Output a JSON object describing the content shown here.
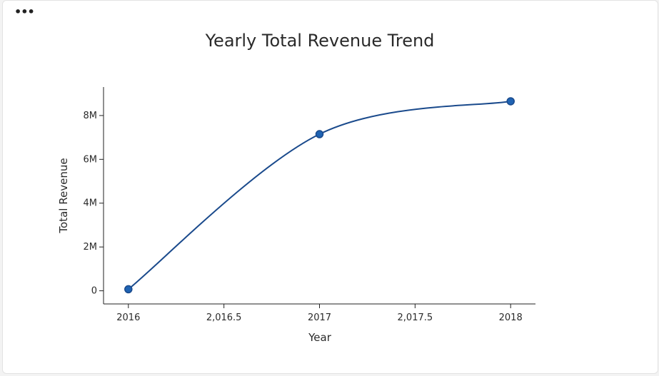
{
  "menu": {
    "dots_label": "•••"
  },
  "colors": {
    "line": "#1a4a8c",
    "marker_fill": "#1f63b3",
    "axis": "#222222",
    "text": "#2a2a2a"
  },
  "chart_data": {
    "type": "line",
    "title": "Yearly Total Revenue Trend",
    "xlabel": "Year",
    "ylabel": "Total Revenue",
    "x": [
      2016,
      2017,
      2018
    ],
    "series": [
      {
        "name": "Total Revenue",
        "values": [
          70000,
          7150000,
          8650000
        ]
      }
    ],
    "xlim": [
      2015.87,
      2018.13
    ],
    "ylim": [
      -600000,
      9300000
    ],
    "xticks": [
      2016,
      2016.5,
      2017,
      2017.5,
      2018
    ],
    "xtick_labels": [
      "2016",
      "2,016.5",
      "2017",
      "2,017.5",
      "2018"
    ],
    "yticks": [
      0,
      2000000,
      4000000,
      6000000,
      8000000
    ],
    "ytick_labels": [
      "0",
      "2M",
      "4M",
      "6M",
      "8M"
    ],
    "grid": false,
    "smooth": true
  }
}
